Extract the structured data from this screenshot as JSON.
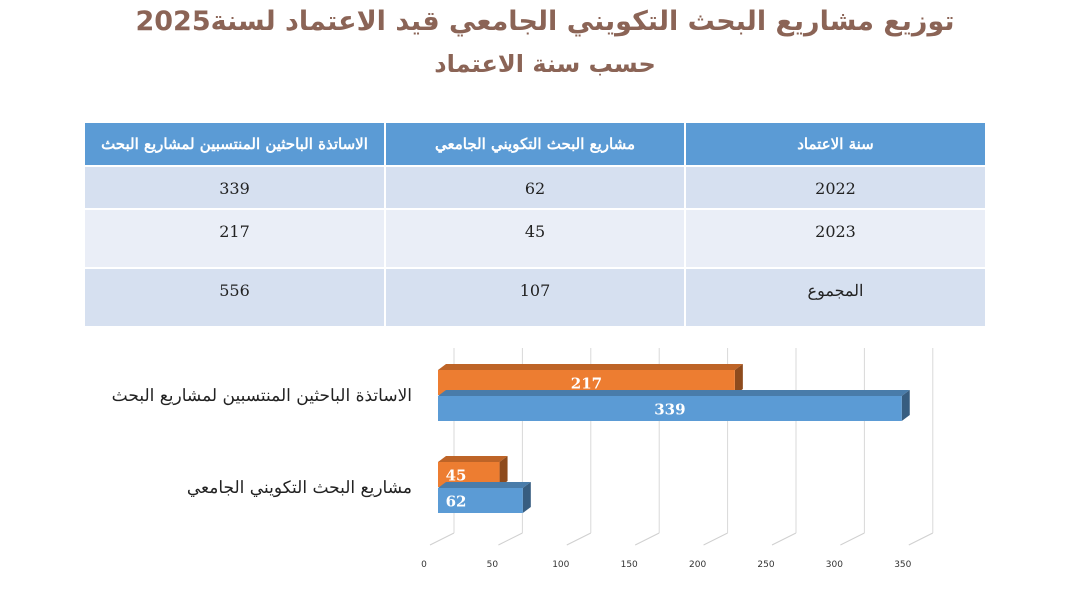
{
  "title_line1": "توزيع مشاريع البحث التكويني الجامعي  قيد الاعتماد  لسنة2025",
  "title_line2": "حسب سنة الاعتماد",
  "table": {
    "headers": [
      "سنة الاعتماد",
      "مشاريع البحث التكويني الجامعي",
      "الاساتذة الباحثين المنتسبين لمشاريع البحث"
    ],
    "rows": [
      [
        "2022",
        "62",
        "339"
      ],
      [
        "2023",
        "45",
        "217"
      ],
      [
        "المجموع",
        "107",
        "556"
      ]
    ]
  },
  "colors": {
    "series_2022": "#5b9bd5",
    "series_2023": "#ed7d31",
    "header": "#5b9bd5",
    "title": "#8b6456"
  },
  "chart_data": {
    "type": "bar",
    "orientation": "horizontal",
    "categories": [
      "مشاريع البحث التكويني الجامعي",
      "الاساتذة الباحثين المنتسبين لمشاريع البحث"
    ],
    "series": [
      {
        "values": [
          62,
          339
        ],
        "color": "#5b9bd5"
      },
      {
        "values": [
          45,
          217
        ],
        "color": "#ed7d31"
      }
    ],
    "xlim": [
      0,
      350
    ],
    "xticks": [
      0,
      50,
      100,
      150,
      200,
      250,
      300,
      350
    ],
    "grid": true,
    "three_d": true
  }
}
